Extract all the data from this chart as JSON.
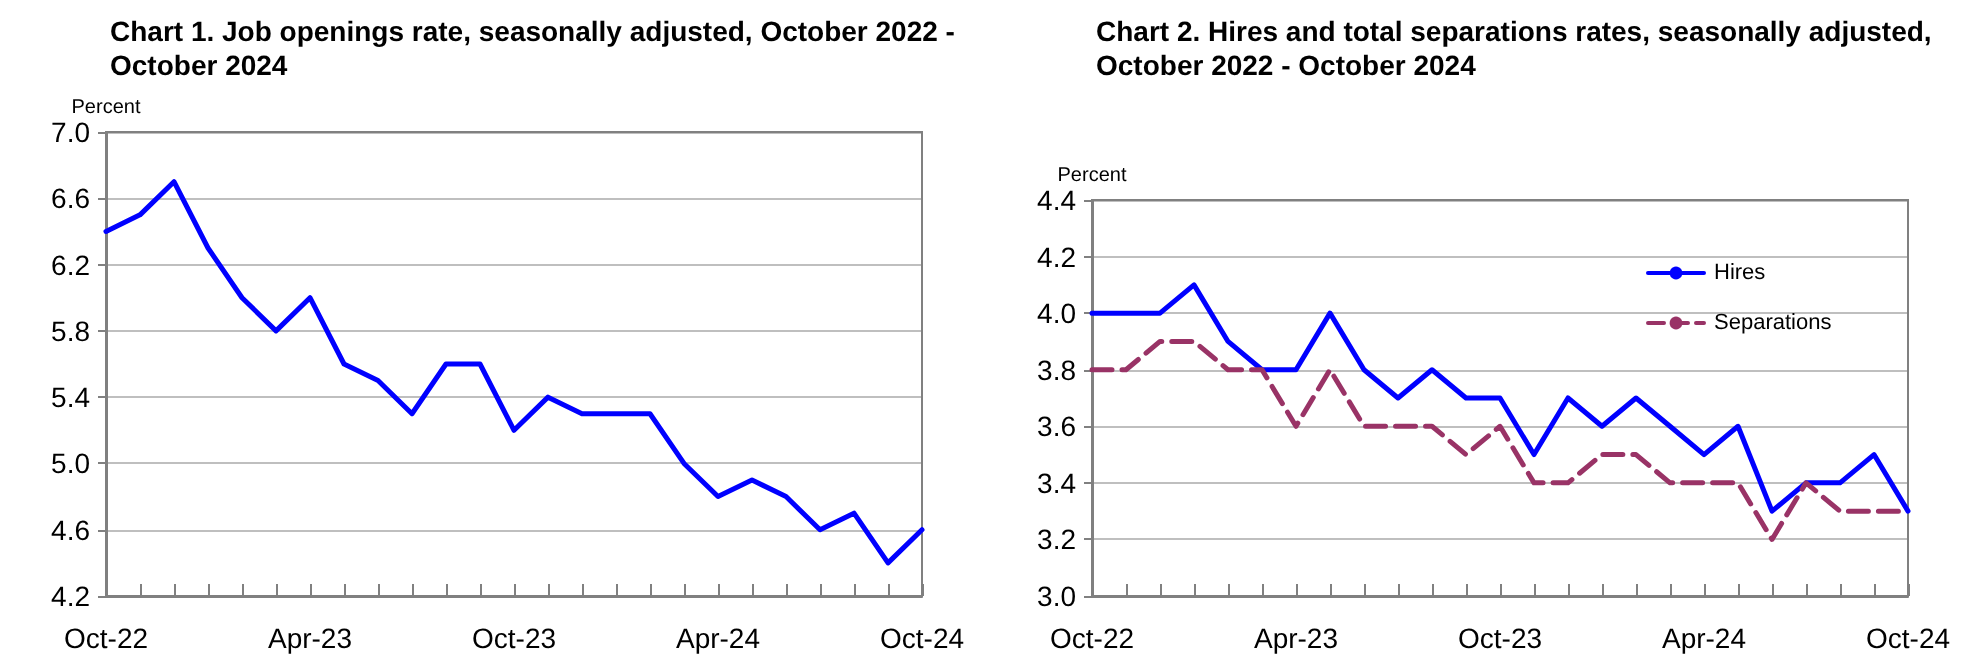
{
  "chart_data": [
    {
      "type": "line",
      "title": "Chart 1. Job openings rate, seasonally adjusted, October 2022 - October 2024",
      "ylabel": "Percent",
      "categories": [
        "Oct-22",
        null,
        null,
        null,
        null,
        null,
        "Apr-23",
        null,
        null,
        null,
        null,
        null,
        "Oct-23",
        null,
        null,
        null,
        null,
        null,
        "Apr-24",
        null,
        null,
        null,
        null,
        null,
        "Oct-24"
      ],
      "series": [
        {
          "color": "#0000ff",
          "line_style": "solid",
          "values": [
            6.4,
            6.5,
            6.7,
            6.3,
            6.0,
            5.8,
            6.0,
            5.6,
            5.5,
            5.3,
            5.6,
            5.6,
            5.2,
            5.4,
            5.3,
            5.3,
            5.3,
            5.0,
            4.8,
            4.9,
            4.8,
            4.6,
            4.7,
            4.4,
            4.6
          ]
        }
      ],
      "ylim": [
        4.2,
        7.0
      ],
      "yticks": [
        {
          "value": 4.2,
          "label": "4.2"
        },
        4.6,
        {
          "value": 5.0,
          "label": "5.0"
        },
        5.4,
        5.8,
        6.2,
        6.6,
        {
          "value": 7.0,
          "label": "7.0"
        }
      ],
      "grid": "y",
      "marker": "none",
      "legend": false
    },
    {
      "type": "line",
      "title": "Chart 2. Hires and total separations rates, seasonally adjusted, October 2022 - October 2024",
      "ylabel": "Percent",
      "categories": [
        "Oct-22",
        null,
        null,
        null,
        null,
        null,
        "Apr-23",
        null,
        null,
        null,
        null,
        null,
        "Oct-23",
        null,
        null,
        null,
        null,
        null,
        "Apr-24",
        null,
        null,
        null,
        null,
        null,
        "Oct-24"
      ],
      "series": [
        {
          "name": "Hires",
          "color": "#0000ff",
          "line_style": "solid",
          "values": [
            4.0,
            4.0,
            4.0,
            4.1,
            3.9,
            3.8,
            3.8,
            4.0,
            3.8,
            3.7,
            3.8,
            3.7,
            3.7,
            3.5,
            3.7,
            3.6,
            3.7,
            3.6,
            3.5,
            3.6,
            3.3,
            3.4,
            3.4,
            3.5,
            3.3
          ]
        },
        {
          "name": "Separations",
          "color": "#993366",
          "line_style": "dashed",
          "values": [
            3.8,
            3.8,
            3.9,
            3.9,
            3.8,
            3.8,
            3.6,
            3.8,
            3.6,
            3.6,
            3.6,
            3.5,
            3.6,
            3.4,
            3.4,
            3.5,
            3.5,
            3.4,
            3.4,
            3.4,
            3.2,
            3.4,
            3.3,
            3.3,
            3.3
          ]
        }
      ],
      "ylim": [
        3.0,
        4.4
      ],
      "yticks": [
        {
          "value": 3.0,
          "label": "3.0"
        },
        3.2,
        3.4,
        3.6,
        3.8,
        {
          "value": 4.0,
          "label": "4.0"
        },
        4.2,
        4.4
      ],
      "grid": "y",
      "marker": "none",
      "legend": "top right"
    }
  ]
}
